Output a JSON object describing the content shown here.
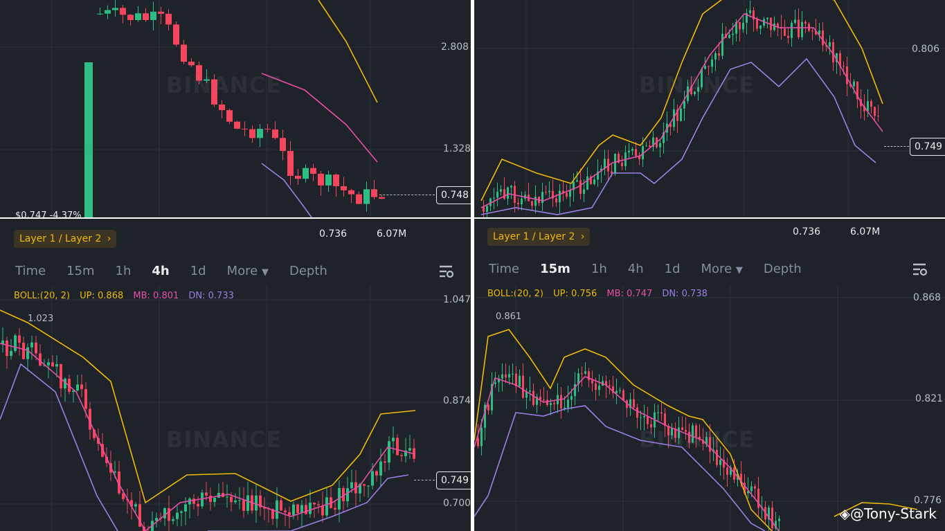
{
  "colors": {
    "up": "#2ebd85",
    "down": "#f6465d",
    "upper": "#f0b90b",
    "mid": "#e84fa8",
    "lower": "#9b7fe6",
    "bg": "#1e2329",
    "grid": "#2b3139"
  },
  "top_left": {
    "y_ticks": [
      "2.808",
      "1.328"
    ],
    "price": "0.748",
    "watermark": "BINANCE",
    "cut_text": "$0.747  -4.37%"
  },
  "top_right": {
    "y_ticks": [
      "0.806"
    ],
    "price": "0.749",
    "watermark": "BINANCE"
  },
  "bottom_left": {
    "low_value": "0.736",
    "volume": "6.07M",
    "pair": "Layer 1 / Layer 2",
    "tabs": [
      "Time",
      "15m",
      "1h",
      "4h",
      "1d",
      "More",
      "Depth"
    ],
    "active_tab": "4h",
    "boll": {
      "name": "BOLL:(20, 2)",
      "up": "UP: 0.868",
      "mb": "MB: 0.801",
      "dn": "DN: 0.733"
    },
    "y_ticks": [
      "1.047",
      "0.874",
      "0.700"
    ],
    "high_label": "1.023",
    "price": "0.749",
    "watermark": "BINANCE"
  },
  "bottom_right": {
    "low_value": "0.736",
    "volume": "6.07M",
    "pair": "Layer 1 / Layer 2",
    "tabs": [
      "Time",
      "15m",
      "1h",
      "4h",
      "1d",
      "More",
      "Depth"
    ],
    "active_tab": "15m",
    "boll": {
      "name": "BOLL:(20, 2)",
      "up": "UP: 0.756",
      "mb": "MB: 0.747",
      "dn": "DN: 0.738"
    },
    "y_ticks": [
      "0.868",
      "0.821",
      "0.776"
    ],
    "high_label": "0.861",
    "watermark": "BINANCE",
    "handle": "@Tony-Stark"
  }
}
